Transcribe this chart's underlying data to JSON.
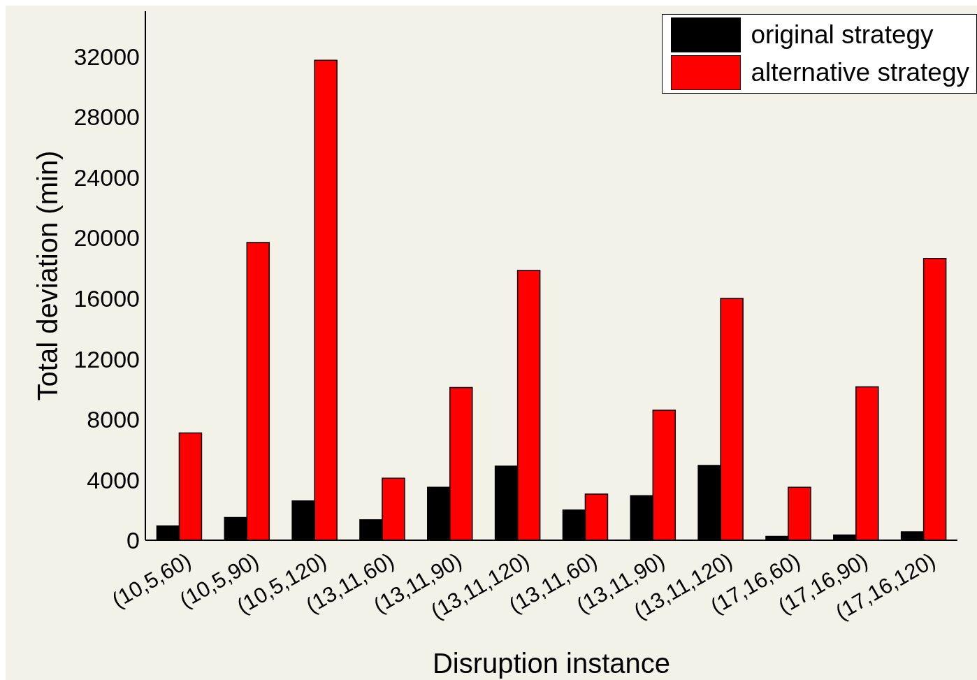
{
  "chart_data": {
    "type": "bar",
    "xlabel": "Disruption instance",
    "ylabel": "Total deviation (min)",
    "categories": [
      "(10,5,60)",
      "(10,5,90)",
      "(10,5,120)",
      "(13,11,60)",
      "(13,11,90)",
      "(13,11,120)",
      "(13,11,60)",
      "(13,11,90)",
      "(13,11,120)",
      "(17,16,60)",
      "(17,16,90)",
      "(17,16,120)"
    ],
    "series": [
      {
        "name": "original strategy",
        "color": "#000000",
        "values": [
          950,
          1500,
          2600,
          1350,
          3500,
          4900,
          2000,
          2950,
          4950,
          250,
          350,
          550
        ]
      },
      {
        "name": "alternative strategy",
        "color": "#ff0000",
        "values": [
          7100,
          19700,
          31750,
          4100,
          10100,
          17850,
          3050,
          8600,
          16000,
          3500,
          10150,
          18650
        ]
      }
    ],
    "ylim": [
      0,
      35000
    ],
    "yticks": [
      0,
      4000,
      8000,
      12000,
      16000,
      20000,
      24000,
      28000,
      32000
    ],
    "grid": false,
    "legend": "top right"
  }
}
